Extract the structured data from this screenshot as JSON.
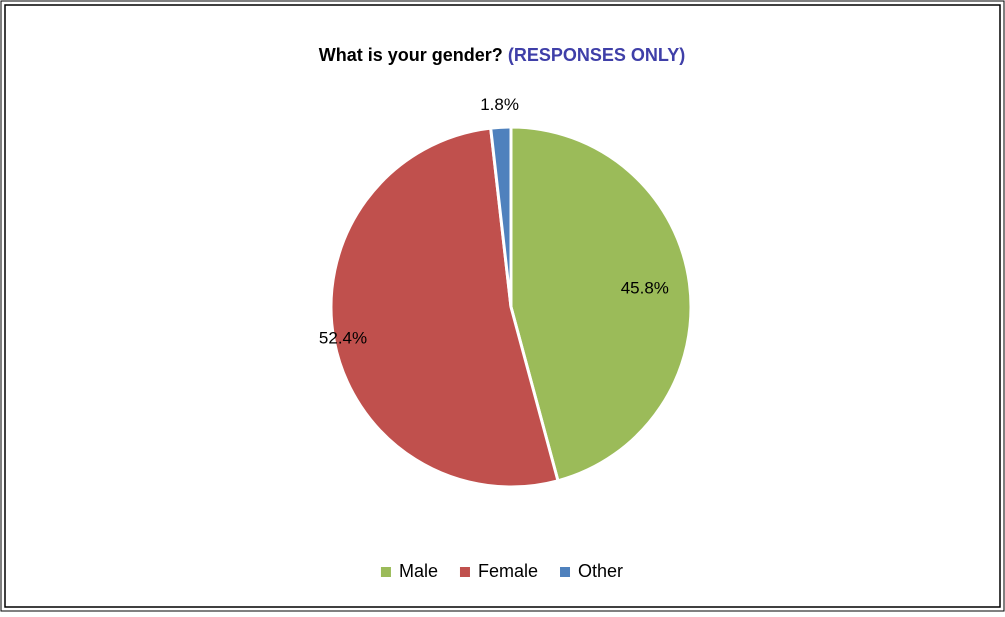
{
  "chart_data": {
    "type": "pie",
    "title": "What is your gender?",
    "title_note": "(RESPONSES ONLY)",
    "categories": [
      "Male",
      "Female",
      "Other"
    ],
    "values": [
      45.8,
      52.4,
      1.8
    ],
    "value_labels": [
      "45.8%",
      "52.4%",
      "1.8%"
    ],
    "colors": [
      "#9bbb59",
      "#c0504d",
      "#4f81bd"
    ],
    "legend": "bottom"
  }
}
